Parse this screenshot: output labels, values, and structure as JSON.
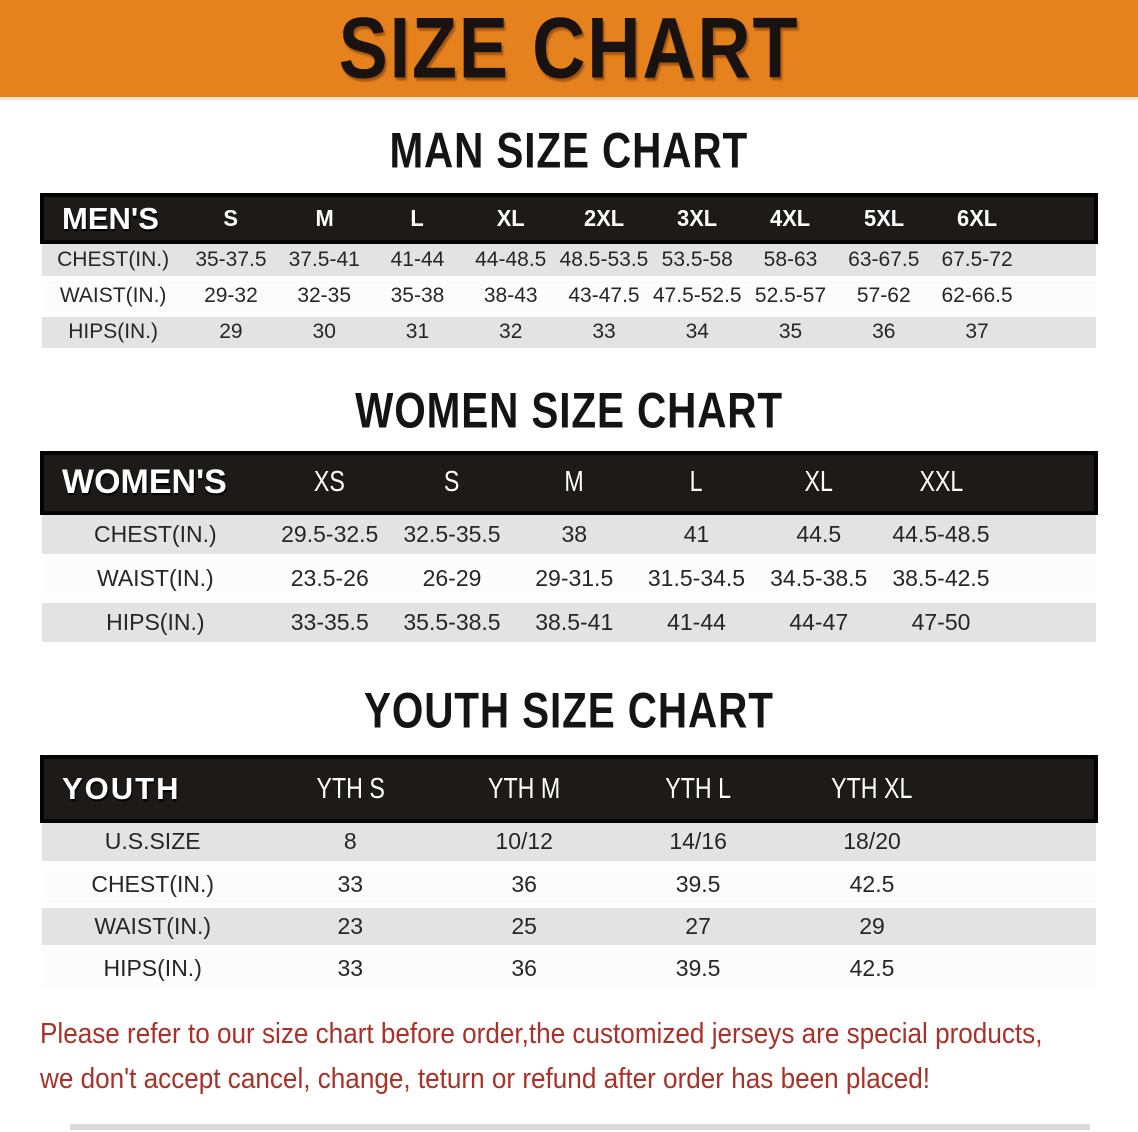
{
  "banner": {
    "title": "SIZE CHART",
    "bg_color": "#e6821e",
    "text_color": "#181310"
  },
  "sections": [
    {
      "heading": "MAN SIZE CHART",
      "table": {
        "header_label": "MEN'S",
        "columns": [
          "S",
          "M",
          "L",
          "XL",
          "2XL",
          "3XL",
          "4XL",
          "5XL",
          "6XL"
        ],
        "rows": [
          {
            "label": "CHEST(IN.)",
            "values": [
              "35-37.5",
              "37.5-41",
              "41-44",
              "44-48.5",
              "48.5-53.5",
              "53.5-58",
              "58-63",
              "63-67.5",
              "67.5-72"
            ]
          },
          {
            "label": "WAIST(IN.)",
            "values": [
              "29-32",
              "32-35",
              "35-38",
              "38-43",
              "43-47.5",
              "47.5-52.5",
              "52.5-57",
              "57-62",
              "62-66.5"
            ]
          },
          {
            "label": "HIPS(IN.)",
            "values": [
              "29",
              "30",
              "31",
              "32",
              "33",
              "34",
              "35",
              "36",
              "37"
            ]
          }
        ]
      }
    },
    {
      "heading": "WOMEN SIZE CHART",
      "table": {
        "header_label": "WOMEN'S",
        "columns": [
          "XS",
          "S",
          "M",
          "L",
          "XL",
          "XXL"
        ],
        "rows": [
          {
            "label": "CHEST(IN.)",
            "values": [
              "29.5-32.5",
              "32.5-35.5",
              "38",
              "41",
              "44.5",
              "44.5-48.5"
            ]
          },
          {
            "label": "WAIST(IN.)",
            "values": [
              "23.5-26",
              "26-29",
              "29-31.5",
              "31.5-34.5",
              "34.5-38.5",
              "38.5-42.5"
            ]
          },
          {
            "label": "HIPS(IN.)",
            "values": [
              "33-35.5",
              "35.5-38.5",
              "38.5-41",
              "41-44",
              "44-47",
              "47-50"
            ]
          }
        ]
      }
    },
    {
      "heading": "YOUTH SIZE CHART",
      "table": {
        "header_label": "YOUTH",
        "columns": [
          "YTH S",
          "YTH M",
          "YTH L",
          "YTH XL"
        ],
        "rows": [
          {
            "label": "U.S.SIZE",
            "values": [
              "8",
              "10/12",
              "14/16",
              "18/20"
            ]
          },
          {
            "label": "CHEST(IN.)",
            "values": [
              "33",
              "36",
              "39.5",
              "42.5"
            ]
          },
          {
            "label": "WAIST(IN.)",
            "values": [
              "23",
              "25",
              "27",
              "29"
            ]
          },
          {
            "label": "HIPS(IN.)",
            "values": [
              "33",
              "36",
              "39.5",
              "42.5"
            ]
          }
        ]
      }
    }
  ],
  "disclaimer": {
    "line1": "Please refer to our size chart before order,the customized jerseys are special products,",
    "line2": "we don't accept cancel, change, teturn or refund after order has been placed!",
    "color": "#a93128"
  },
  "colors": {
    "banner_bg": "#e6821e",
    "table_header_bg": "#1e1a1a",
    "row_stripe_gray": "#e4e3e3",
    "row_white": "#fcfcfc",
    "disclaimer_red": "#a93128"
  }
}
